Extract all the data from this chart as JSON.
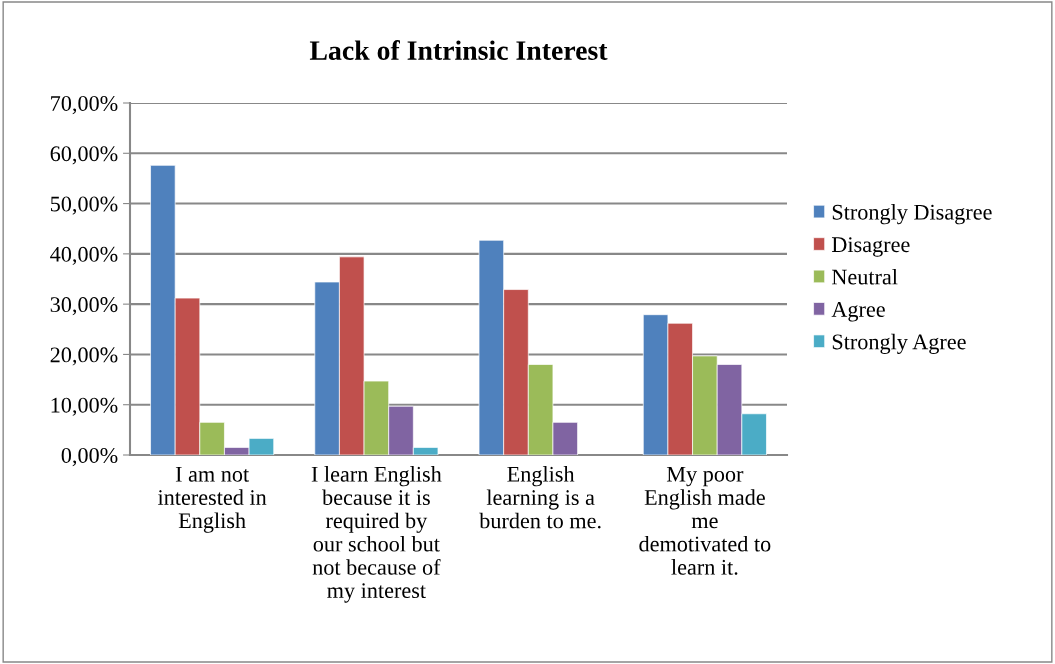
{
  "chart_data": {
    "type": "bar",
    "title": "Lack of Intrinsic Interest",
    "categories": [
      "I am not\ninterested in\nEnglish",
      "I learn English\nbecause it is\nrequired by\nour school but\nnot because of\nmy interest",
      "English\nlearning is a\nburden to me.",
      "My poor\nEnglish made\nme\ndemotivated to\nlearn it."
    ],
    "series": [
      {
        "name": "Strongly Disagree",
        "color": "#4f81bd",
        "values": [
          57.6,
          34.4,
          42.7,
          27.9
        ]
      },
      {
        "name": "Disagree",
        "color": "#c0504d",
        "values": [
          31.2,
          39.4,
          32.9,
          26.2
        ]
      },
      {
        "name": "Neutral",
        "color": "#9bbb59",
        "values": [
          6.5,
          14.7,
          18.0,
          19.7
        ]
      },
      {
        "name": "Agree",
        "color": "#8064a2",
        "values": [
          1.5,
          9.7,
          6.5,
          18.0
        ]
      },
      {
        "name": "Strongly Agree",
        "color": "#4bacc6",
        "values": [
          3.3,
          1.5,
          null,
          8.2
        ]
      }
    ],
    "ylim": [
      0,
      70
    ],
    "yticks": [
      {
        "value": 0,
        "label": "0,00%"
      },
      {
        "value": 10,
        "label": "10,00%"
      },
      {
        "value": 20,
        "label": "20,00%"
      },
      {
        "value": 30,
        "label": "30,00%"
      },
      {
        "value": 40,
        "label": "40,00%"
      },
      {
        "value": 50,
        "label": "50,00%"
      },
      {
        "value": 60,
        "label": "60,00%"
      },
      {
        "value": 70,
        "label": "70,00%"
      }
    ],
    "grid": "y",
    "legend": "right"
  }
}
